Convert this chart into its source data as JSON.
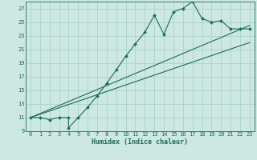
{
  "title": "",
  "xlabel": "Humidex (Indice chaleur)",
  "ylabel": "",
  "bg_color": "#cce8e0",
  "grid_color": "#a8d4cc",
  "line_color": "#1a6b5a",
  "xlim": [
    -0.5,
    23.5
  ],
  "ylim": [
    9,
    28
  ],
  "xticks": [
    0,
    1,
    2,
    3,
    4,
    5,
    6,
    7,
    8,
    9,
    10,
    11,
    12,
    13,
    14,
    15,
    16,
    17,
    18,
    19,
    20,
    21,
    22,
    23
  ],
  "yticks": [
    9,
    11,
    13,
    15,
    17,
    19,
    21,
    23,
    25,
    27
  ],
  "series1_x": [
    0,
    1,
    2,
    3,
    4,
    4,
    5,
    6,
    7,
    8,
    9,
    10,
    11,
    12,
    13,
    14,
    15,
    16,
    17,
    18,
    19,
    20,
    21,
    22,
    23
  ],
  "series1_y": [
    11,
    11,
    10.7,
    11,
    11,
    9.5,
    11,
    12.5,
    14.2,
    16,
    18,
    20,
    21.8,
    23.5,
    26,
    23.2,
    26.5,
    27,
    28,
    25.5,
    25,
    25.2,
    24,
    24,
    24
  ],
  "series2_x": [
    0,
    23
  ],
  "series2_y": [
    11,
    24.5
  ],
  "series3_x": [
    0,
    23
  ],
  "series3_y": [
    11,
    22
  ],
  "marker_size": 2.0,
  "line_width": 0.8,
  "tick_fontsize": 5.0,
  "xlabel_fontsize": 6.0
}
